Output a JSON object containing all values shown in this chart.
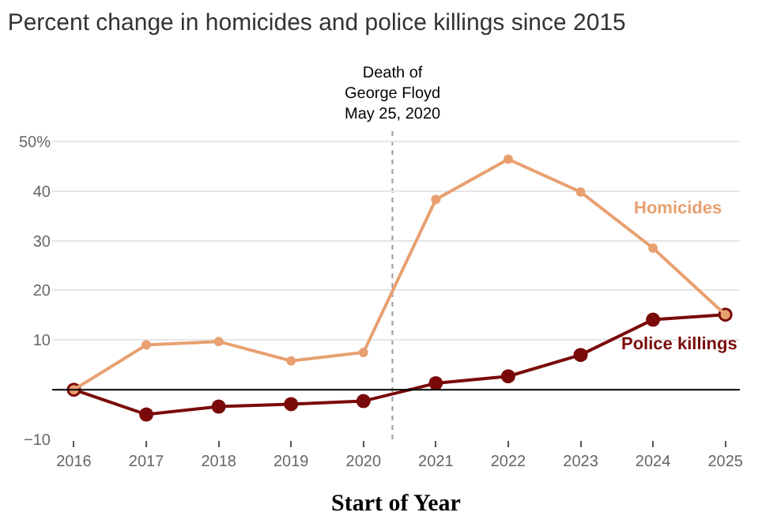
{
  "chart_data": {
    "type": "line",
    "title": "Percent change in homicides and police killings since 2015",
    "xlabel": "Start of Year",
    "x": [
      2016,
      2017,
      2018,
      2019,
      2020,
      2021,
      2022,
      2023,
      2024,
      2025
    ],
    "series": [
      {
        "name": "Homicides",
        "color": "#e8a070",
        "values": [
          0,
          9.0,
          9.7,
          5.8,
          7.5,
          38.3,
          46.4,
          39.8,
          28.5,
          15.1
        ]
      },
      {
        "name": "Police killings",
        "color": "#7a0a0a",
        "values": [
          0,
          -5.0,
          -3.4,
          -2.9,
          -2.3,
          1.3,
          2.7,
          7.0,
          14.1,
          15.1
        ]
      }
    ],
    "xlim": [
      2015.7,
      2025.2
    ],
    "xticks": [
      2016,
      2017,
      2018,
      2019,
      2020,
      2021,
      2022,
      2023,
      2024,
      2025
    ],
    "ylim": [
      -10,
      53
    ],
    "yticks": [
      {
        "value": -10,
        "label": "−10"
      },
      {
        "value": 0,
        "label": null
      },
      10,
      20,
      30,
      40,
      {
        "value": 50,
        "label": "50%"
      }
    ],
    "ref_lines": [
      {
        "axis": "x",
        "value": 2020.4,
        "label": "Death of\nGeorge Floyd\nMay 25, 2020",
        "color": "#999999",
        "line_style": "dotted"
      },
      {
        "axis": "y",
        "value": 0,
        "color": "#000000",
        "line_style": "solid"
      }
    ],
    "grid": "y",
    "marker": "circle",
    "line_style": "solid",
    "legend": false
  }
}
